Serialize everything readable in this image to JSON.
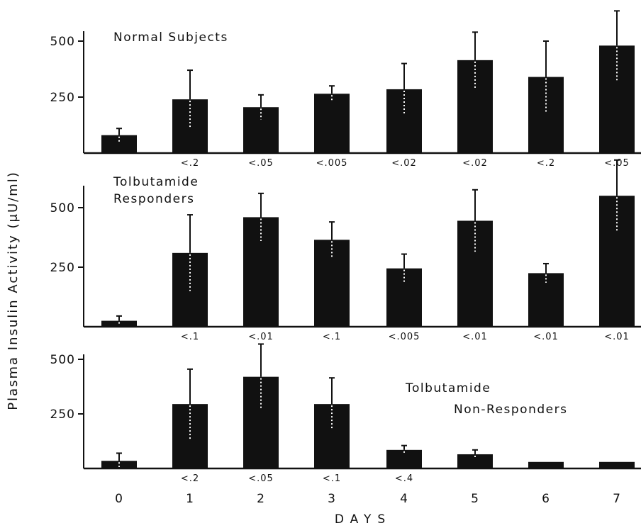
{
  "chart_data": {
    "type": "bar",
    "xlabel": "DAYS",
    "ylabel": "Plasma Insulin Activity (μU/ml)",
    "categories": [
      "0",
      "1",
      "2",
      "3",
      "4",
      "5",
      "6",
      "7"
    ],
    "yticks": [
      "250",
      "500"
    ],
    "bar_color": "#111111",
    "error_color": "#111111",
    "panels": [
      {
        "title_lines": [
          "Normal Subjects"
        ],
        "title_position": "top-left",
        "values": [
          80,
          240,
          205,
          265,
          285,
          415,
          340,
          480
        ],
        "errors": [
          110,
          370,
          260,
          300,
          400,
          540,
          500,
          635
        ],
        "p_values": [
          "",
          "<.2",
          "<.05",
          "<.005",
          "<.02",
          "<.02",
          "<.2",
          "<.05"
        ]
      },
      {
        "title_lines": [
          "Tolbutamide",
          "Responders"
        ],
        "title_position": "top-left",
        "values": [
          25,
          310,
          460,
          365,
          245,
          445,
          225,
          550
        ],
        "errors": [
          45,
          470,
          560,
          440,
          305,
          575,
          265,
          700
        ],
        "p_values": [
          "",
          "<.1",
          "<.01",
          "<.1",
          "<.005",
          "<.01",
          "<.01",
          "<.01"
        ]
      },
      {
        "title_lines": [
          "Tolbutamide",
          "Non-Responders"
        ],
        "title_position": "center-right",
        "values": [
          35,
          295,
          420,
          295,
          85,
          65,
          30,
          30
        ],
        "errors": [
          70,
          455,
          570,
          415,
          105,
          85,
          0,
          0
        ],
        "p_values": [
          "",
          "<.2",
          "<.05",
          "<.1",
          "<.4",
          "",
          "",
          ""
        ]
      }
    ]
  }
}
